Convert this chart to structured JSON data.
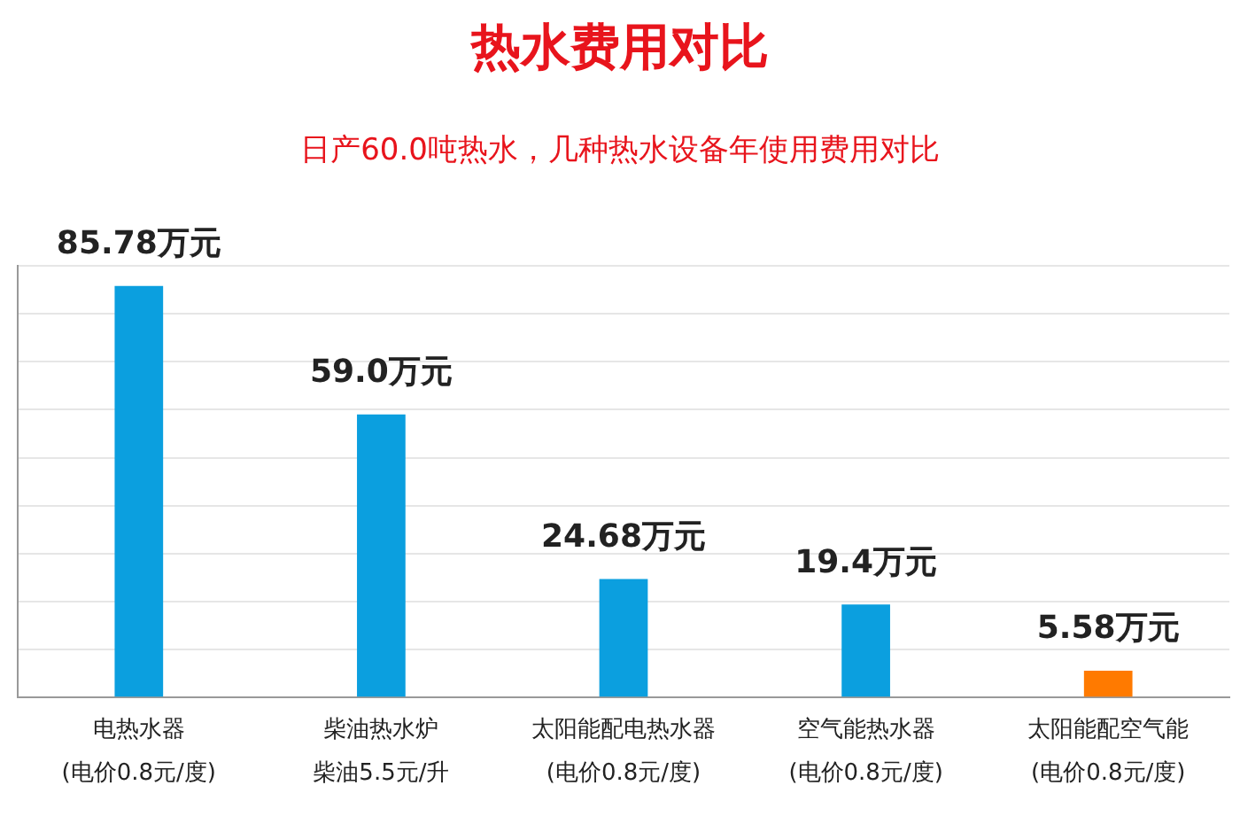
{
  "chart_data": {
    "type": "bar",
    "title": "热水费用对比",
    "subtitle": "日产60.0吨热水，几种热水设备年使用费用对比",
    "categories": [
      "电热水器\n(电价0.8元/度)",
      "柴油热水炉柴油5.5元/升",
      "太阳能配电热水器\n(电价0.8元/度)",
      "空气能热水器\n(电价0.8元/度)",
      "太阳能配空气能\n(电价0.8元/度)"
    ],
    "values": [
      85.78,
      59.0,
      24.68,
      19.4,
      5.58
    ],
    "colors": [
      "#0b9fdf",
      "#0b9fdf",
      "#0b9fdf",
      "#0b9fdf",
      "#ff7a00"
    ],
    "value_labels": [
      "85.78万元",
      "59.0万元",
      "24.68万元",
      "19.4万元",
      "5.58万元"
    ],
    "grid": true,
    "tick_labels": "x",
    "legend": false
  }
}
